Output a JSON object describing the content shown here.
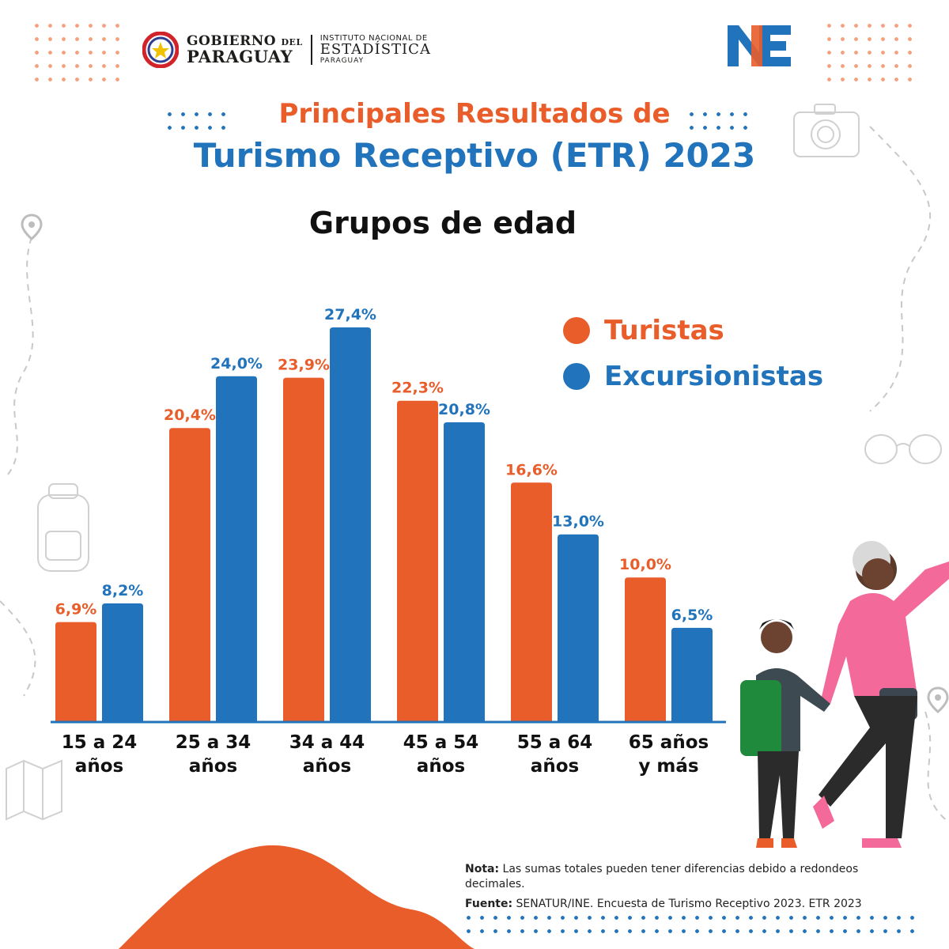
{
  "header": {
    "gobierno_line1": "GOBIERNO",
    "gobierno_del": "DEL",
    "gobierno_line2": "PARAGUAY",
    "ine_line1": "INSTITUTO NACIONAL DE",
    "ine_line2": "ESTADÍSTICA",
    "ine_line3": "PARAGUAY",
    "ine_logo_n": "N",
    "ine_logo_e": "E"
  },
  "title_line1": "Principales Resultados de",
  "title_line2": "Turismo Receptivo (ETR) 2023",
  "colors": {
    "turistas": "#e85d2a",
    "excursionistas": "#2174bb",
    "axis": "#2174bb",
    "decor_dots_orange": "#f5a17d",
    "decor_dots_blue": "#2174bb"
  },
  "chart_data": {
    "type": "bar",
    "title": "Grupos de edad",
    "categories": [
      "15 a 24\naños",
      "25 a 34\naños",
      "34 a 44\naños",
      "45 a 54\naños",
      "55 a 64\naños",
      "65 años\ny más"
    ],
    "series": [
      {
        "name": "Turistas",
        "values": [
          6.9,
          20.4,
          23.9,
          22.3,
          16.6,
          10.0
        ],
        "labels": [
          "6,9%",
          "20,4%",
          "23,9%",
          "22,3%",
          "16,6%",
          "10,0%"
        ],
        "color": "#e85d2a"
      },
      {
        "name": "Excursionistas",
        "values": [
          8.2,
          24.0,
          27.4,
          20.8,
          13.0,
          6.5
        ],
        "labels": [
          "8,2%",
          "24,0%",
          "27,4%",
          "20,8%",
          "13,0%",
          "6,5%"
        ],
        "color": "#2174bb"
      }
    ],
    "ylim": [
      0,
      27.4
    ],
    "grid": false,
    "legend": "top-right"
  },
  "note": {
    "nota_label": "Nota:",
    "nota_text": " Las sumas totales pueden tener diferencias debido a redondeos decimales.",
    "fuente_label": "Fuente:",
    "fuente_text": " SENATUR/INE. Encuesta de Turismo Receptivo 2023. ETR 2023"
  }
}
